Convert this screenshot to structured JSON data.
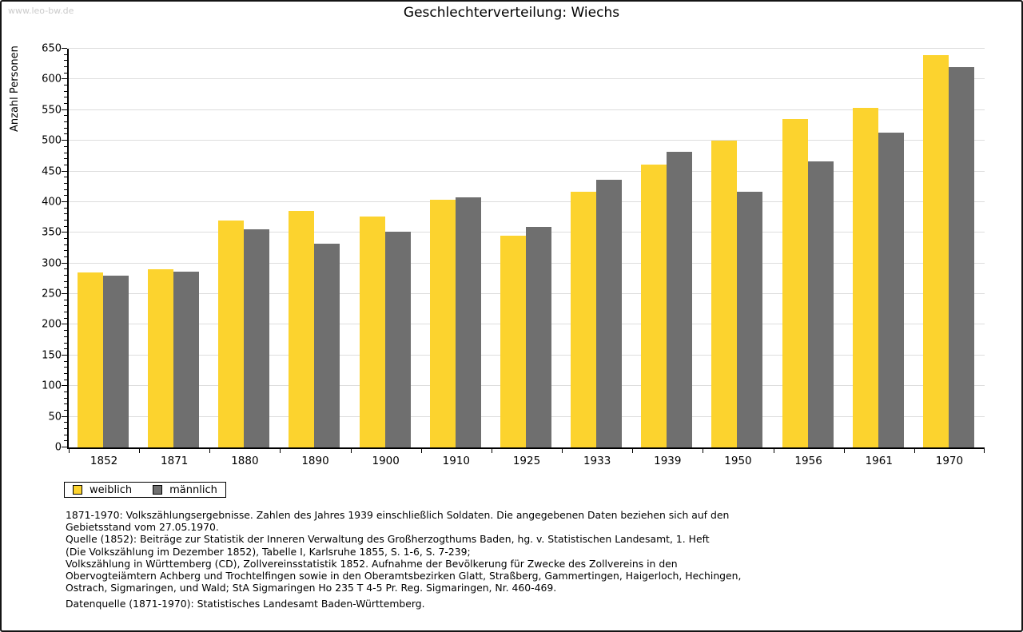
{
  "watermark": "www.leo-bw.de",
  "title": "Geschlechterverteilung: Wiechs",
  "y_axis_label": "Anzahl Personen",
  "colors": {
    "female": "#fcd32e",
    "male": "#6f6f6f",
    "gridline": "#dddddd",
    "axis": "#000000",
    "watermark": "#cbcbcb"
  },
  "legend": {
    "items": [
      {
        "label": "weiblich",
        "color": "#fcd32e"
      },
      {
        "label": "männlich",
        "color": "#6f6f6f"
      }
    ]
  },
  "chart_data": {
    "type": "bar",
    "title": "Geschlechterverteilung: Wiechs",
    "xlabel": "",
    "ylabel": "Anzahl Personen",
    "categories": [
      "1852",
      "1871",
      "1880",
      "1890",
      "1900",
      "1910",
      "1925",
      "1933",
      "1939",
      "1950",
      "1956",
      "1961",
      "1970"
    ],
    "series": [
      {
        "name": "weiblich",
        "color": "#fcd32e",
        "values": [
          285,
          291,
          370,
          385,
          377,
          404,
          345,
          417,
          461,
          500,
          535,
          554,
          640
        ]
      },
      {
        "name": "männlich",
        "color": "#6f6f6f",
        "values": [
          280,
          286,
          356,
          332,
          352,
          408,
          360,
          436,
          482,
          417,
          467,
          513,
          620
        ]
      }
    ],
    "ylim": [
      0,
      650
    ],
    "ytick_step": 50,
    "yminor_step": 10,
    "grid": true,
    "legend_position": "bottom-left"
  },
  "footnotes": {
    "lines": [
      "1871-1970: Volkszählungsergebnisse. Zahlen des Jahres 1939 einschließlich Soldaten. Die angegebenen Daten beziehen sich auf den",
      "Gebietsstand vom 27.05.1970.",
      "Quelle (1852): Beiträge zur Statistik der Inneren Verwaltung des Großherzogthums Baden, hg. v. Statistischen Landesamt, 1. Heft",
      "(Die Volkszählung im Dezember 1852), Tabelle I, Karlsruhe 1855, S. 1-6, S. 7-239;",
      "Volkszählung in Württemberg (CD), Zollvereinsstatistik 1852. Aufnahme der Bevölkerung für Zwecke des Zollvereins in den",
      "Obervogteiämtern Achberg und Trochtelfingen sowie in den Oberamtsbezirken Glatt, Straßberg, Gammertingen, Haigerloch, Hechingen,",
      "Ostrach, Sigmaringen, und Wald; StA Sigmaringen Ho 235 T 4-5 Pr. Reg. Sigmaringen, Nr. 460-469."
    ],
    "datasource": "Datenquelle (1871-1970): Statistisches Landesamt Baden-Württemberg."
  }
}
